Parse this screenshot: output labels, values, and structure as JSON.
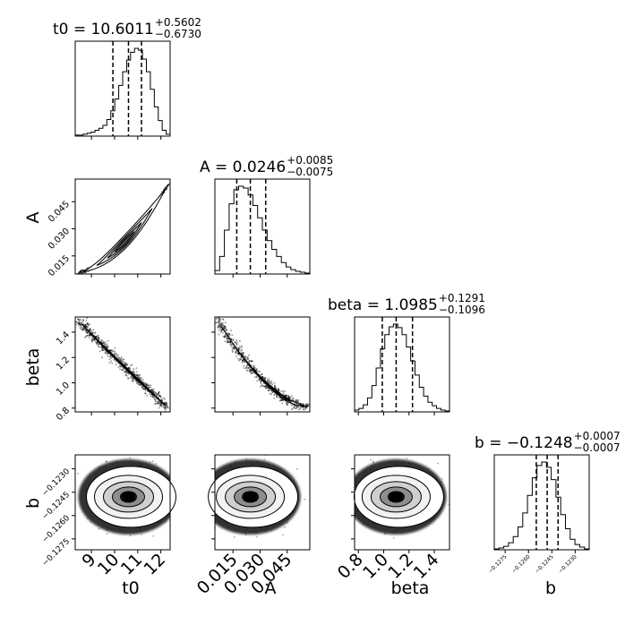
{
  "chart_data": {
    "type": "corner",
    "parameters": [
      "t0",
      "A",
      "beta",
      "b"
    ],
    "axis_labels": [
      "t0",
      "A",
      "beta",
      "b"
    ],
    "titles": [
      {
        "param": "t0",
        "label": "t0 = 10.6011",
        "plus": "+0.5602",
        "minus": "−0.6730",
        "median": 10.6011,
        "lo": 9.9281,
        "hi": 11.1613
      },
      {
        "param": "A",
        "label": "A = 0.0246",
        "plus": "+0.0085",
        "minus": "−0.0075",
        "median": 0.0246,
        "lo": 0.0171,
        "hi": 0.0331
      },
      {
        "param": "beta",
        "label": "beta = 1.0985",
        "plus": "+0.1291",
        "minus": "−0.1096",
        "median": 1.0985,
        "lo": 0.9889,
        "hi": 1.2276
      },
      {
        "param": "b",
        "label": "b = −0.1248",
        "plus": "+0.0007",
        "minus": "−0.0007",
        "median": -0.1248,
        "lo": -0.1255,
        "hi": -0.1241
      }
    ],
    "ranges": {
      "t0": [
        8.3,
        12.4
      ],
      "A": [
        0.005,
        0.0575
      ],
      "beta": [
        0.77,
        1.52
      ],
      "b": [
        -0.1282,
        -0.1221
      ]
    },
    "ticks": {
      "t0": {
        "values": [
          9,
          10,
          11,
          12
        ],
        "labels": [
          "9",
          "10",
          "11",
          "12"
        ]
      },
      "A": {
        "values": [
          0.015,
          0.03,
          0.045
        ],
        "labels": [
          "0.015",
          "0.030",
          "0.045"
        ]
      },
      "beta": {
        "values": [
          0.8,
          1.0,
          1.2,
          1.4
        ],
        "labels": [
          "0.8",
          "1.0",
          "1.2",
          "1.4"
        ]
      },
      "b": {
        "values": [
          -0.1275,
          -0.126,
          -0.1245,
          -0.123
        ],
        "labels": [
          "−0.1275",
          "−0.1260",
          "−0.1245",
          "−0.1230"
        ]
      }
    },
    "histograms": {
      "t0": [
        1,
        1,
        2,
        3,
        4,
        6,
        8,
        11,
        17,
        26,
        38,
        52,
        66,
        78,
        86,
        90,
        88,
        79,
        66,
        48,
        30,
        16,
        6,
        2
      ],
      "A": [
        4,
        20,
        50,
        80,
        96,
        100,
        98,
        90,
        78,
        64,
        50,
        38,
        28,
        20,
        13,
        8,
        5,
        3,
        2,
        1
      ],
      "beta": [
        2,
        4,
        8,
        16,
        30,
        50,
        72,
        88,
        97,
        100,
        96,
        88,
        74,
        58,
        42,
        28,
        18,
        11,
        7,
        4,
        2,
        1
      ],
      "b": [
        1,
        2,
        4,
        8,
        15,
        26,
        42,
        62,
        82,
        96,
        100,
        94,
        80,
        60,
        40,
        24,
        12,
        6,
        3,
        1
      ]
    }
  }
}
